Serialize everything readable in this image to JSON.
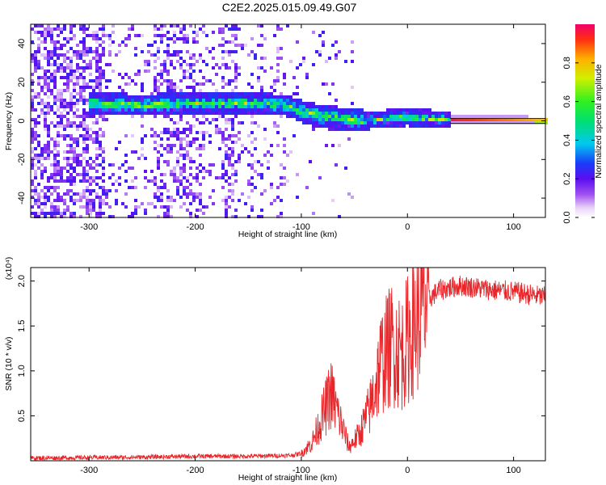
{
  "figure": {
    "title": "C2E2.2025.015.09.49.G07"
  },
  "chart_data": [
    {
      "type": "heatmap",
      "xlabel": "Height of straight line (km)",
      "ylabel": "Frequency (Hz)",
      "xlim": [
        -355,
        130
      ],
      "ylim": [
        -50,
        50
      ],
      "xticks": [
        -300,
        -200,
        -100,
        0,
        100
      ],
      "yticks": [
        -40,
        -20,
        0,
        20,
        40
      ],
      "colorbar": {
        "label": "Normalized spectral amplitude",
        "range": [
          0,
          1
        ],
        "ticks": [
          0.0,
          0.2,
          0.4,
          0.6,
          0.8
        ],
        "colormap": "purple-blue-cyan-green-yellow-red"
      },
      "ridge": {
        "points": [
          {
            "x": -295,
            "y": 9
          },
          {
            "x": -250,
            "y": 8
          },
          {
            "x": -200,
            "y": 9
          },
          {
            "x": -150,
            "y": 9
          },
          {
            "x": -115,
            "y": 8
          },
          {
            "x": -100,
            "y": 5
          },
          {
            "x": -80,
            "y": 2
          },
          {
            "x": -60,
            "y": 1
          },
          {
            "x": -40,
            "y": 0
          },
          {
            "x": -20,
            "y": 1
          },
          {
            "x": 0,
            "y": 2
          },
          {
            "x": 20,
            "y": 1
          },
          {
            "x": 50,
            "y": 0.5
          },
          {
            "x": 130,
            "y": 0
          }
        ]
      }
    },
    {
      "type": "line",
      "xlabel": "Height of straight line (km)",
      "ylabel": "SNR (10 * v/v)",
      "y_multiplier": "(x10⁴)",
      "xlim": [
        -355,
        130
      ],
      "ylim": [
        0,
        2.15
      ],
      "xticks": [
        -300,
        -200,
        -100,
        0,
        100
      ],
      "yticks": [
        0.5,
        1.0,
        1.5,
        2.0
      ],
      "series_color": "#e8262a",
      "envelope": [
        {
          "x": -355,
          "y": 0.03
        },
        {
          "x": -250,
          "y": 0.04
        },
        {
          "x": -200,
          "y": 0.05
        },
        {
          "x": -150,
          "y": 0.05
        },
        {
          "x": -110,
          "y": 0.06
        },
        {
          "x": -100,
          "y": 0.08
        },
        {
          "x": -90,
          "y": 0.2
        },
        {
          "x": -80,
          "y": 0.5
        },
        {
          "x": -72,
          "y": 0.75
        },
        {
          "x": -62,
          "y": 0.4
        },
        {
          "x": -55,
          "y": 0.15
        },
        {
          "x": -45,
          "y": 0.3
        },
        {
          "x": -35,
          "y": 0.6
        },
        {
          "x": -25,
          "y": 1.1
        },
        {
          "x": -15,
          "y": 1.3
        },
        {
          "x": -5,
          "y": 1.2
        },
        {
          "x": 5,
          "y": 1.5
        },
        {
          "x": 15,
          "y": 1.75
        },
        {
          "x": 30,
          "y": 1.9
        },
        {
          "x": 50,
          "y": 1.95
        },
        {
          "x": 80,
          "y": 1.9
        },
        {
          "x": 100,
          "y": 1.88
        },
        {
          "x": 130,
          "y": 1.82
        }
      ]
    }
  ]
}
